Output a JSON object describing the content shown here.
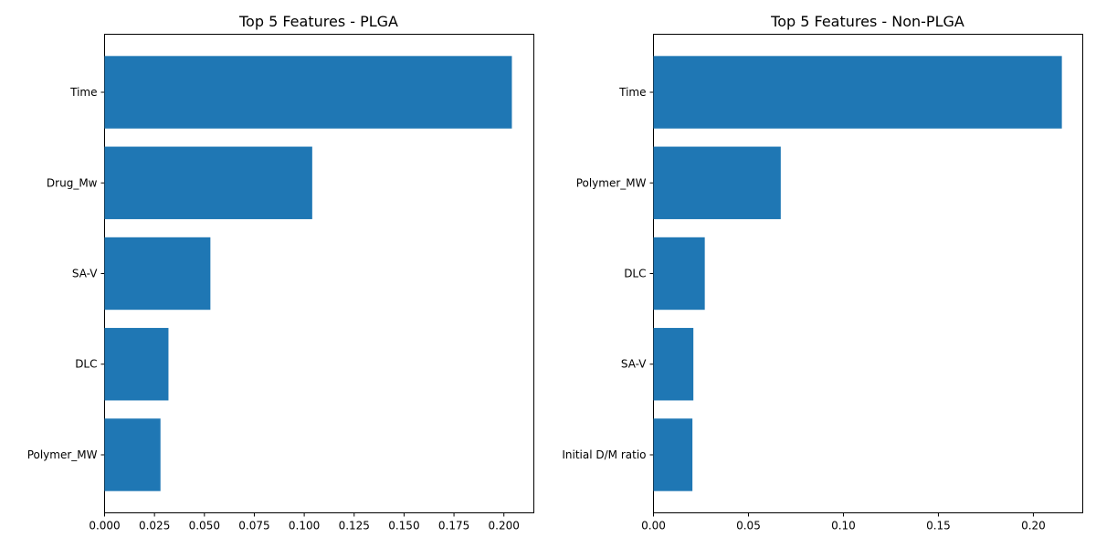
{
  "chart_data": [
    {
      "type": "bar",
      "orientation": "horizontal",
      "title": "Top 5 Features - PLGA",
      "xlabel": "",
      "ylabel": "",
      "categories": [
        "Time",
        "Drug_Mw",
        "SA-V",
        "DLC",
        "Polymer_MW"
      ],
      "values": [
        0.204,
        0.104,
        0.053,
        0.032,
        0.028
      ],
      "xlim": [
        0,
        0.215
      ],
      "xticks": [
        0.0,
        0.025,
        0.05,
        0.075,
        0.1,
        0.125,
        0.15,
        0.175,
        0.2
      ],
      "xtick_labels": [
        "0.000",
        "0.025",
        "0.050",
        "0.075",
        "0.100",
        "0.125",
        "0.150",
        "0.175",
        "0.200"
      ],
      "bar_color": "#1f77b4",
      "grid": false,
      "legend": "none"
    },
    {
      "type": "bar",
      "orientation": "horizontal",
      "title": "Top 5 Features - Non-PLGA",
      "xlabel": "",
      "ylabel": "",
      "categories": [
        "Time",
        "Polymer_MW",
        "DLC",
        "SA-V",
        "Initial D/M ratio"
      ],
      "values": [
        0.215,
        0.067,
        0.027,
        0.021,
        0.0205
      ],
      "xlim": [
        0,
        0.226
      ],
      "xticks": [
        0.0,
        0.05,
        0.1,
        0.15,
        0.2
      ],
      "xtick_labels": [
        "0.00",
        "0.05",
        "0.10",
        "0.15",
        "0.20"
      ],
      "bar_color": "#1f77b4",
      "grid": false,
      "legend": "none"
    }
  ]
}
